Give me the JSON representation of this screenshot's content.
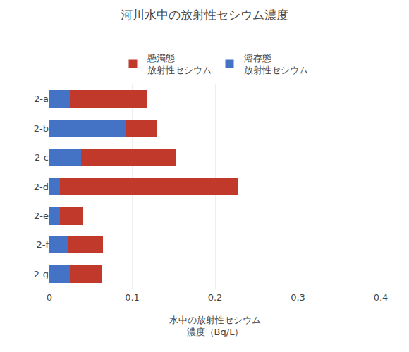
{
  "chart_data": {
    "type": "bar",
    "orientation": "horizontal",
    "stacked": true,
    "title": "河川水中の放射性セシウム濃度",
    "x_label": "水中の放射性セシウム\n濃度（Bq/L）",
    "categories": [
      "2-a",
      "2-b",
      "2-c",
      "2-d",
      "2-e",
      "2-f",
      "2-g"
    ],
    "series": [
      {
        "name": "溶存態\n放射性セシウム",
        "color": "#4472c4",
        "values": [
          0.025,
          0.093,
          0.038,
          0.013,
          0.013,
          0.022,
          0.025
        ]
      },
      {
        "name": "懸濁態\n放射性セシウム",
        "color": "#c0392b",
        "values": [
          0.093,
          0.037,
          0.115,
          0.215,
          0.027,
          0.043,
          0.038
        ]
      }
    ],
    "xlim": [
      0,
      0.4
    ],
    "xticks": [
      0,
      0.1,
      0.2,
      0.3,
      0.4
    ],
    "grid": true,
    "legend": "top"
  }
}
